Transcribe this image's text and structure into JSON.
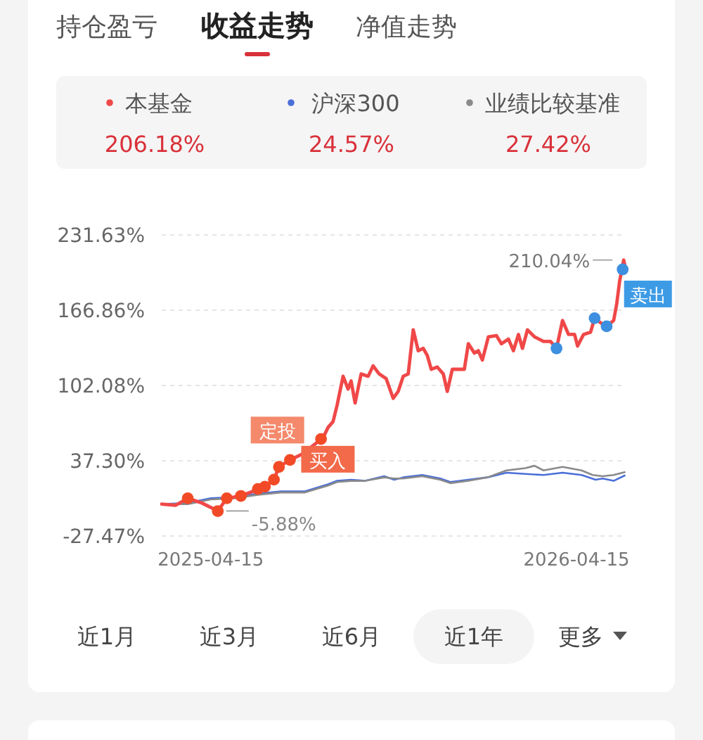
{
  "chart_data": {
    "type": "line",
    "title": "收益走势",
    "grid": "y",
    "legend": "top",
    "xlim": [
      "2025-02-25",
      "2026-06-03"
    ],
    "xticks": [
      "2025-04-15",
      "2026-04-15"
    ],
    "ylim": [
      -27.47,
      231.63
    ],
    "yticks": [
      {
        "value": -27.47,
        "label": "-27.47%"
      },
      {
        "value": 37.3,
        "label": "37.30%"
      },
      {
        "value": 102.08,
        "label": "102.08%"
      },
      {
        "value": 166.86,
        "label": "166.86%"
      },
      {
        "value": 231.63,
        "label": "231.63%"
      }
    ],
    "series": [
      {
        "name": "本基金",
        "color": "#f04848",
        "x": [
          "2025-02-25",
          "2025-03-11",
          "2025-03-23",
          "2025-04-06",
          "2025-04-22",
          "2025-05-01",
          "2025-05-15",
          "2025-05-27",
          "2025-06-08",
          "2025-06-17",
          "2025-06-22",
          "2025-07-01",
          "2025-07-15",
          "2025-07-27",
          "2025-08-05",
          "2025-08-10",
          "2025-08-15",
          "2025-08-19",
          "2025-08-25",
          "2025-08-30",
          "2025-09-02",
          "2025-09-06",
          "2025-09-12",
          "2025-09-19",
          "2025-09-24",
          "2025-09-30",
          "2025-10-07",
          "2025-10-14",
          "2025-10-19",
          "2025-10-24",
          "2025-10-29",
          "2025-11-03",
          "2025-11-08",
          "2025-11-13",
          "2025-11-17",
          "2025-11-21",
          "2025-11-27",
          "2025-12-03",
          "2025-12-07",
          "2025-12-12",
          "2025-12-24",
          "2025-12-28",
          "2026-01-03",
          "2026-01-07",
          "2026-01-11",
          "2026-01-17",
          "2026-01-25",
          "2026-01-30",
          "2026-02-06",
          "2026-02-11",
          "2026-02-16",
          "2026-02-20",
          "2026-02-25",
          "2026-03-04",
          "2026-03-13",
          "2026-03-20",
          "2026-03-26",
          "2026-04-01",
          "2026-04-07",
          "2026-04-13",
          "2026-04-16",
          "2026-04-22",
          "2026-04-29",
          "2026-05-03",
          "2026-05-09",
          "2026-05-15",
          "2026-05-22",
          "2026-05-25",
          "2026-05-28",
          "2026-06-01",
          "2026-06-02"
        ],
        "values": [
          0,
          -1,
          5,
          1,
          -5.88,
          5,
          7,
          11,
          15,
          21,
          32,
          37,
          43,
          51,
          57,
          66,
          71,
          85,
          110,
          99,
          106,
          87,
          112,
          110,
          119,
          112,
          108,
          91,
          97,
          110,
          112,
          150,
          132,
          134,
          128,
          116,
          118,
          112,
          97,
          116,
          116,
          138,
          130,
          132,
          124,
          144,
          145,
          138,
          142,
          132,
          146,
          134,
          150,
          144,
          140,
          140,
          134,
          158,
          146,
          146,
          136,
          146,
          148,
          160,
          156,
          153,
          158,
          172,
          192,
          210.04,
          206.18
        ]
      },
      {
        "name": "沪深300",
        "color": "#4a6fd8",
        "x": [
          "2025-02-25",
          "2025-03-23",
          "2025-04-15",
          "2025-05-08",
          "2025-06-01",
          "2025-06-24",
          "2025-07-18",
          "2025-08-10",
          "2025-08-19",
          "2025-09-02",
          "2025-09-16",
          "2025-10-05",
          "2025-10-15",
          "2025-10-24",
          "2025-11-12",
          "2025-11-30",
          "2025-12-10",
          "2025-12-28",
          "2026-01-16",
          "2026-02-04",
          "2026-02-23",
          "2026-03-13",
          "2026-04-01",
          "2026-04-20",
          "2026-05-04",
          "2026-05-11",
          "2026-05-22",
          "2026-06-02"
        ],
        "values": [
          0,
          1,
          5,
          6,
          9,
          11,
          11,
          17,
          20,
          21,
          20,
          24,
          21,
          23,
          25,
          22,
          19,
          21,
          23,
          27,
          26,
          25,
          27,
          25,
          21,
          22,
          20,
          24.57
        ]
      },
      {
        "name": "业绩比较基准",
        "color": "#8a8a8a",
        "x": [
          "2025-02-25",
          "2025-03-23",
          "2025-04-15",
          "2025-05-08",
          "2025-06-01",
          "2025-06-24",
          "2025-07-18",
          "2025-08-10",
          "2025-08-19",
          "2025-09-02",
          "2025-09-16",
          "2025-10-05",
          "2025-10-15",
          "2025-10-24",
          "2025-11-12",
          "2025-11-30",
          "2025-12-10",
          "2025-12-28",
          "2026-01-16",
          "2026-02-04",
          "2026-02-23",
          "2026-03-04",
          "2026-03-13",
          "2026-04-01",
          "2026-04-20",
          "2026-05-01",
          "2026-05-11",
          "2026-05-22",
          "2026-06-02"
        ],
        "values": [
          0,
          0,
          4,
          5,
          8,
          10,
          10,
          16,
          19,
          20,
          20,
          23,
          22,
          22,
          24,
          21,
          18,
          20,
          23,
          29,
          31,
          33,
          29,
          32,
          29,
          25,
          24,
          25,
          27.42
        ]
      },
      {
        "type": "scatter",
        "color": "#f24a26",
        "x": [
          "2025-03-23",
          "2025-04-22",
          "2025-05-01",
          "2025-05-15",
          "2025-06-01",
          "2025-06-08",
          "2025-06-17",
          "2025-06-22",
          "2025-07-03",
          "2025-08-03"
        ],
        "values": [
          5,
          -6,
          5,
          7,
          13,
          15,
          21,
          32,
          38,
          56
        ]
      },
      {
        "type": "scatter",
        "color": "#3d8fe0",
        "x": [
          "2026-03-26",
          "2026-05-03",
          "2026-05-15",
          "2026-05-31"
        ],
        "values": [
          134,
          160,
          153,
          202
        ]
      }
    ],
    "annotations": [
      "持仓盈亏",
      "净值走势",
      "206.18%",
      "24.57%",
      "27.42%",
      "近1月",
      "近3月",
      "近6月",
      "近1年",
      "更多",
      {
        "text": "210.04%",
        "x": "2026-06-01",
        "y": 210.04
      },
      {
        "text": "-5.88%",
        "x": "2025-04-22",
        "y": -5.88
      },
      {
        "text": "定投",
        "x": "2025-07-27",
        "y": 51
      },
      {
        "text": "买入",
        "x": "2025-07-03",
        "y": 38
      },
      {
        "text": "卖出",
        "x": "2026-05-31",
        "y": 202
      }
    ]
  }
}
